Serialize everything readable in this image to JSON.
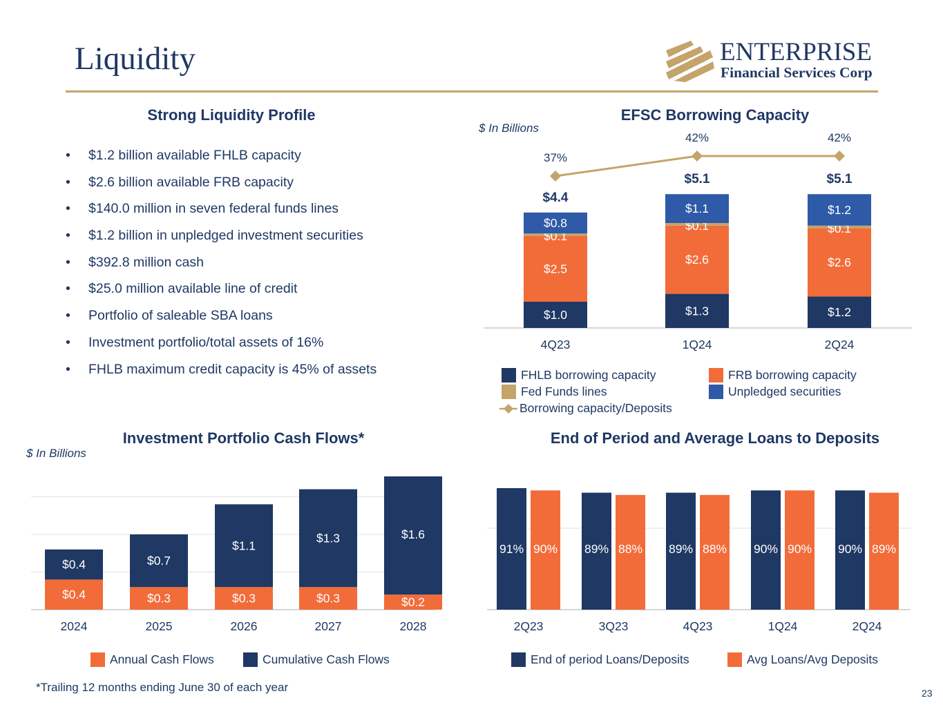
{
  "page": {
    "title": "Liquidity",
    "slide_number": "23",
    "footnote": "*Trailing 12 months ending June 30 of each year"
  },
  "logo": {
    "line1": "ENTERPRISE",
    "line2": "Financial Services Corp"
  },
  "colors": {
    "navy": "#1f3864",
    "orange": "#f26c3a",
    "gold": "#c4a46a",
    "blue": "#2e5aa8"
  },
  "liquidity_profile": {
    "title": "Strong Liquidity Profile",
    "items": [
      "$1.2 billion available FHLB capacity",
      "$2.6 billion available FRB capacity",
      "$140.0 million in seven federal funds lines",
      "$1.2 billion in unpledged investment securities",
      "$392.8 million cash",
      "$25.0 million available line of credit",
      "Portfolio of saleable SBA loans",
      "Investment portfolio/total assets of 16%",
      "FHLB maximum credit capacity is 45% of assets"
    ]
  },
  "chart_data": [
    {
      "id": "borrowing",
      "type": "bar",
      "stacked": true,
      "title": "EFSC Borrowing Capacity",
      "units_label": "$ In Billions",
      "categories": [
        "4Q23",
        "1Q24",
        "2Q24"
      ],
      "series": [
        {
          "name": "FHLB borrowing capacity",
          "values": [
            1.0,
            1.3,
            1.2
          ],
          "labels": [
            "$1.0",
            "$1.3",
            "$1.2"
          ],
          "color": "#1f3864"
        },
        {
          "name": "FRB borrowing capacity",
          "values": [
            2.5,
            2.6,
            2.6
          ],
          "labels": [
            "$2.5",
            "$2.6",
            "$2.6"
          ],
          "color": "#f26c3a"
        },
        {
          "name": "Fed Funds lines",
          "values": [
            0.1,
            0.1,
            0.1
          ],
          "labels": [
            "$0.1",
            "$0.1",
            "$0.1"
          ],
          "color": "#c4a46a"
        },
        {
          "name": "Unpledged securities",
          "values": [
            0.8,
            1.1,
            1.2
          ],
          "labels": [
            "$0.8",
            "$1.1",
            "$1.2"
          ],
          "color": "#2e5aa8"
        }
      ],
      "totals": [
        "$4.4",
        "$5.1",
        "$5.1"
      ],
      "line": {
        "name": "Borrowing capacity/Deposits",
        "values": [
          37,
          42,
          42
        ],
        "labels": [
          "37%",
          "42%",
          "42%"
        ],
        "color": "#c4a46a"
      },
      "legend_position": "bottom"
    },
    {
      "id": "cashflows",
      "type": "bar",
      "stacked": true,
      "title": "Investment Portfolio Cash Flows*",
      "units_label": "$ In Billions",
      "categories": [
        "2024",
        "2025",
        "2026",
        "2027",
        "2028"
      ],
      "series": [
        {
          "name": "Annual Cash Flows",
          "values": [
            0.4,
            0.3,
            0.3,
            0.3,
            0.2
          ],
          "labels": [
            "$0.4",
            "$0.3",
            "$0.3",
            "$0.3",
            "$0.2"
          ],
          "color": "#f26c3a"
        },
        {
          "name": "Cumulative Cash Flows",
          "values": [
            0.4,
            0.7,
            1.1,
            1.3,
            1.6
          ],
          "labels": [
            "$0.4",
            "$0.7",
            "$1.1",
            "$1.3",
            "$1.6"
          ],
          "color": "#1f3864"
        }
      ],
      "grid": true,
      "legend_position": "bottom"
    },
    {
      "id": "loans",
      "type": "bar",
      "title": "End of Period and Average Loans to Deposits",
      "categories": [
        "2Q23",
        "3Q23",
        "4Q23",
        "1Q24",
        "2Q24"
      ],
      "series": [
        {
          "name": "End of period Loans/Deposits",
          "values": [
            91,
            89,
            89,
            90,
            90
          ],
          "labels": [
            "91%",
            "89%",
            "89%",
            "90%",
            "90%"
          ],
          "color": "#1f3864"
        },
        {
          "name": "Avg Loans/Avg Deposits",
          "values": [
            90,
            88,
            88,
            90,
            89
          ],
          "labels": [
            "90%",
            "88%",
            "88%",
            "90%",
            "89%"
          ],
          "color": "#f26c3a"
        }
      ],
      "grid": true,
      "legend_position": "bottom"
    }
  ]
}
